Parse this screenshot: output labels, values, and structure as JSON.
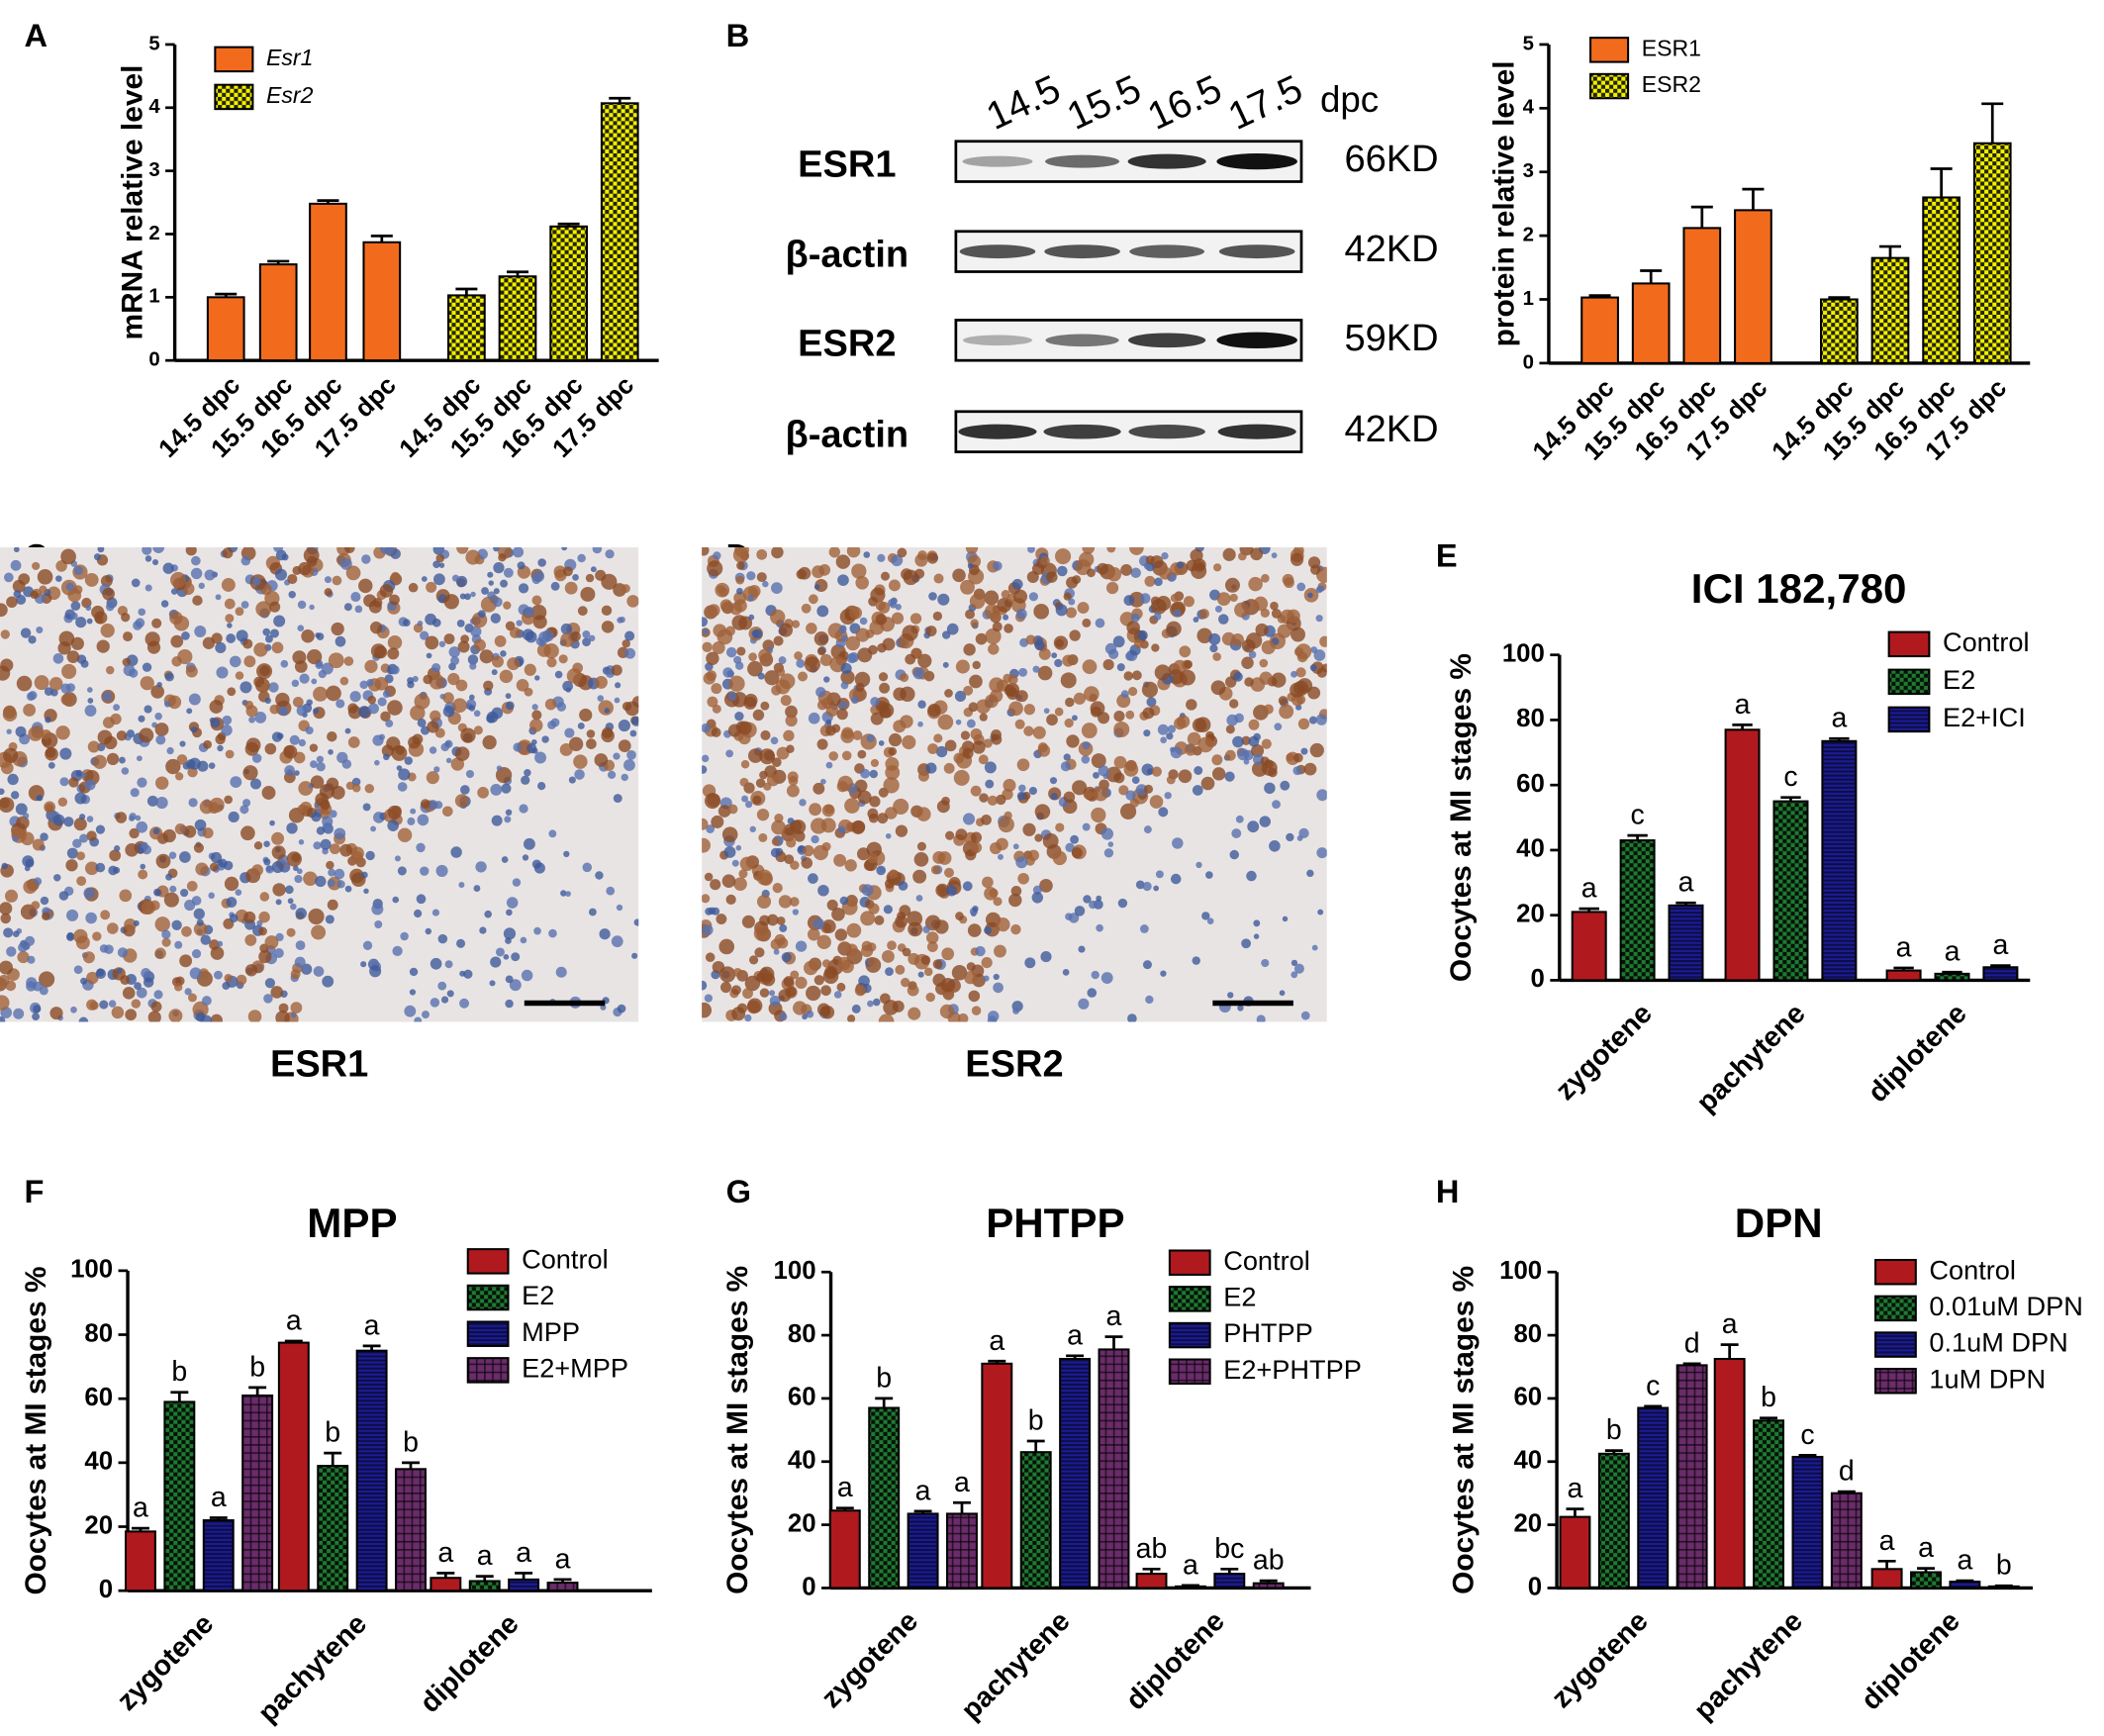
{
  "chart_data": [
    {
      "type": "bar",
      "panel": "A",
      "ylabel": "mRNA relative level",
      "legend_italic": true,
      "categories": [
        "14.5 dpc",
        "15.5 dpc",
        "16.5 dpc",
        "17.5 dpc",
        "14.5 dpc",
        "15.5 dpc",
        "16.5 dpc",
        "17.5 dpc"
      ],
      "series": [
        {
          "name": "Esr1",
          "color": "#f26b1d",
          "pattern": "solid",
          "values": [
            1.0,
            1.52,
            2.48,
            1.87,
            null,
            null,
            null,
            null
          ],
          "errors": [
            0.05,
            0.05,
            0.05,
            0.1,
            null,
            null,
            null,
            null
          ]
        },
        {
          "name": "Esr2",
          "color": "#f2f000",
          "pattern": "checker",
          "values": [
            null,
            null,
            null,
            null,
            1.03,
            1.33,
            2.12,
            4.07
          ],
          "errors": [
            null,
            null,
            null,
            null,
            0.1,
            0.07,
            0.04,
            0.08
          ]
        }
      ],
      "ylim": [
        0,
        5
      ],
      "yticks": [
        0,
        1,
        2,
        3,
        4,
        5
      ]
    },
    {
      "type": "bar",
      "ylabel": "protein relative level",
      "categories": [
        "14.5 dpc",
        "15.5 dpc",
        "16.5 dpc",
        "17.5 dpc",
        "14.5 dpc",
        "15.5 dpc",
        "16.5 dpc",
        "17.5 dpc"
      ],
      "series": [
        {
          "name": "ESR1",
          "color": "#f26b1d",
          "pattern": "solid",
          "values": [
            1.03,
            1.25,
            2.12,
            2.4,
            null,
            null,
            null,
            null
          ],
          "errors": [
            0.03,
            0.2,
            0.33,
            0.33,
            null,
            null,
            null,
            null
          ]
        },
        {
          "name": "ESR2",
          "color": "#f2f000",
          "pattern": "checker",
          "values": [
            null,
            null,
            null,
            null,
            1.0,
            1.65,
            2.6,
            3.45
          ],
          "errors": [
            null,
            null,
            null,
            null,
            0.03,
            0.18,
            0.45,
            0.62
          ]
        }
      ],
      "ylim": [
        0,
        5
      ],
      "yticks": [
        0,
        1,
        2,
        3,
        4,
        5
      ]
    },
    {
      "type": "bar",
      "panel": "E",
      "title": "ICI 182,780",
      "ylabel": "Oocytes at MI stages %",
      "categories": [
        "zygotene",
        "pachytene",
        "diplotene"
      ],
      "series": [
        {
          "name": "Control",
          "color": "#b0191e",
          "pattern": "solid",
          "values": [
            21,
            77,
            3
          ],
          "errors": [
            1,
            1.5,
            0.8
          ],
          "annotations": [
            "a",
            "a",
            "a"
          ]
        },
        {
          "name": "E2",
          "color": "#1f7a32",
          "pattern": "checker",
          "values": [
            43,
            55,
            2
          ],
          "errors": [
            1.5,
            1.2,
            0.5
          ],
          "annotations": [
            "c",
            "c",
            "a"
          ]
        },
        {
          "name": "E2+ICI",
          "color": "#1c1c96",
          "pattern": "hlines",
          "values": [
            23,
            73.5,
            4
          ],
          "errors": [
            0.8,
            0.8,
            0.5
          ],
          "annotations": [
            "a",
            "a",
            "a"
          ]
        }
      ],
      "ylim": [
        0,
        100
      ],
      "yticks": [
        0,
        20,
        40,
        60,
        80,
        100
      ]
    },
    {
      "type": "bar",
      "panel": "F",
      "title": "MPP",
      "ylabel": "Oocytes at MI stages %",
      "categories": [
        "zygotene",
        "pachytene",
        "diplotene"
      ],
      "series": [
        {
          "name": "Control",
          "color": "#b0191e",
          "pattern": "solid",
          "values": [
            18.5,
            77.5,
            4
          ],
          "errors": [
            1,
            0.5,
            1.5
          ],
          "annotations": [
            "a",
            "a",
            "a"
          ]
        },
        {
          "name": "E2",
          "color": "#1f7a32",
          "pattern": "checker",
          "values": [
            59,
            39,
            3
          ],
          "errors": [
            3,
            4,
            1.5
          ],
          "annotations": [
            "b",
            "b",
            "a"
          ]
        },
        {
          "name": "MPP",
          "color": "#1c1c96",
          "pattern": "hlines",
          "values": [
            22,
            75,
            3.5
          ],
          "errors": [
            0.8,
            1.5,
            2
          ],
          "annotations": [
            "a",
            "a",
            "a"
          ]
        },
        {
          "name": "E2+MPP",
          "color": "#6a2c6a",
          "pattern": "grid",
          "values": [
            61,
            38,
            2.5
          ],
          "errors": [
            2.5,
            2,
            1
          ],
          "annotations": [
            "b",
            "b",
            "a"
          ]
        }
      ],
      "ylim": [
        0,
        100
      ],
      "yticks": [
        0,
        20,
        40,
        60,
        80,
        100
      ]
    },
    {
      "type": "bar",
      "panel": "G",
      "title": "PHTPP",
      "ylabel": "Oocytes at MI stages %",
      "categories": [
        "zygotene",
        "pachytene",
        "diplotene"
      ],
      "series": [
        {
          "name": "Control",
          "color": "#b0191e",
          "pattern": "solid",
          "values": [
            24.5,
            71,
            4.5
          ],
          "errors": [
            0.8,
            0.8,
            1.5
          ],
          "annotations": [
            "a",
            "a",
            "ab"
          ]
        },
        {
          "name": "E2",
          "color": "#1f7a32",
          "pattern": "checker",
          "values": [
            57,
            43,
            0.5
          ],
          "errors": [
            3,
            3.5,
            0.3
          ],
          "annotations": [
            "b",
            "b",
            "a"
          ]
        },
        {
          "name": "PHTPP",
          "color": "#1c1c96",
          "pattern": "hlines",
          "values": [
            23.5,
            72.5,
            4.5
          ],
          "errors": [
            0.8,
            1,
            1.5
          ],
          "annotations": [
            "a",
            "a",
            "bc"
          ]
        },
        {
          "name": "E2+PHTPP",
          "color": "#6a2c6a",
          "pattern": "grid",
          "values": [
            23.5,
            75.5,
            1.5
          ],
          "errors": [
            3.5,
            4,
            0.8
          ],
          "annotations": [
            "a",
            "a",
            "ab"
          ]
        }
      ],
      "ylim": [
        0,
        100
      ],
      "yticks": [
        0,
        20,
        40,
        60,
        80,
        100
      ]
    },
    {
      "type": "bar",
      "panel": "H",
      "title": "DPN",
      "ylabel": "Oocytes at MI stages %",
      "categories": [
        "zygotene",
        "pachytene",
        "diplotene"
      ],
      "series": [
        {
          "name": "Control",
          "color": "#b0191e",
          "pattern": "solid",
          "values": [
            22.5,
            72.5,
            6
          ],
          "errors": [
            2.5,
            4.5,
            2.5
          ],
          "annotations": [
            "a",
            "a",
            "a"
          ]
        },
        {
          "name": "0.01uM DPN",
          "color": "#1f7a32",
          "pattern": "checker",
          "values": [
            42.5,
            53,
            5
          ],
          "errors": [
            1,
            0.8,
            1.2
          ],
          "annotations": [
            "b",
            "b",
            "a"
          ]
        },
        {
          "name": "0.1uM DPN",
          "color": "#1c1c96",
          "pattern": "hlines",
          "values": [
            57,
            41.5,
            2
          ],
          "errors": [
            0.5,
            0.5,
            0.3
          ],
          "annotations": [
            "c",
            "c",
            "a"
          ]
        },
        {
          "name": "1uM DPN",
          "color": "#6a2c6a",
          "pattern": "grid",
          "values": [
            70.5,
            30,
            0.5
          ],
          "errors": [
            0.5,
            0.5,
            0.2
          ],
          "annotations": [
            "d",
            "d",
            "b"
          ]
        }
      ],
      "ylim": [
        0,
        100
      ],
      "yticks": [
        0,
        20,
        40,
        60,
        80,
        100
      ]
    }
  ],
  "blot": {
    "panel": "B",
    "lanes": [
      "14.5",
      "15.5",
      "16.5",
      "17.5"
    ],
    "unit": "dpc",
    "rows": [
      {
        "label": "ESR1",
        "size": "66KD"
      },
      {
        "label": "β-actin",
        "size": "42KD"
      },
      {
        "label": "ESR2",
        "size": "59KD"
      },
      {
        "label": "β-actin",
        "size": "42KD"
      }
    ]
  },
  "micrographs": [
    {
      "panel": "C",
      "caption": "ESR1"
    },
    {
      "panel": "D",
      "caption": "ESR2"
    }
  ]
}
